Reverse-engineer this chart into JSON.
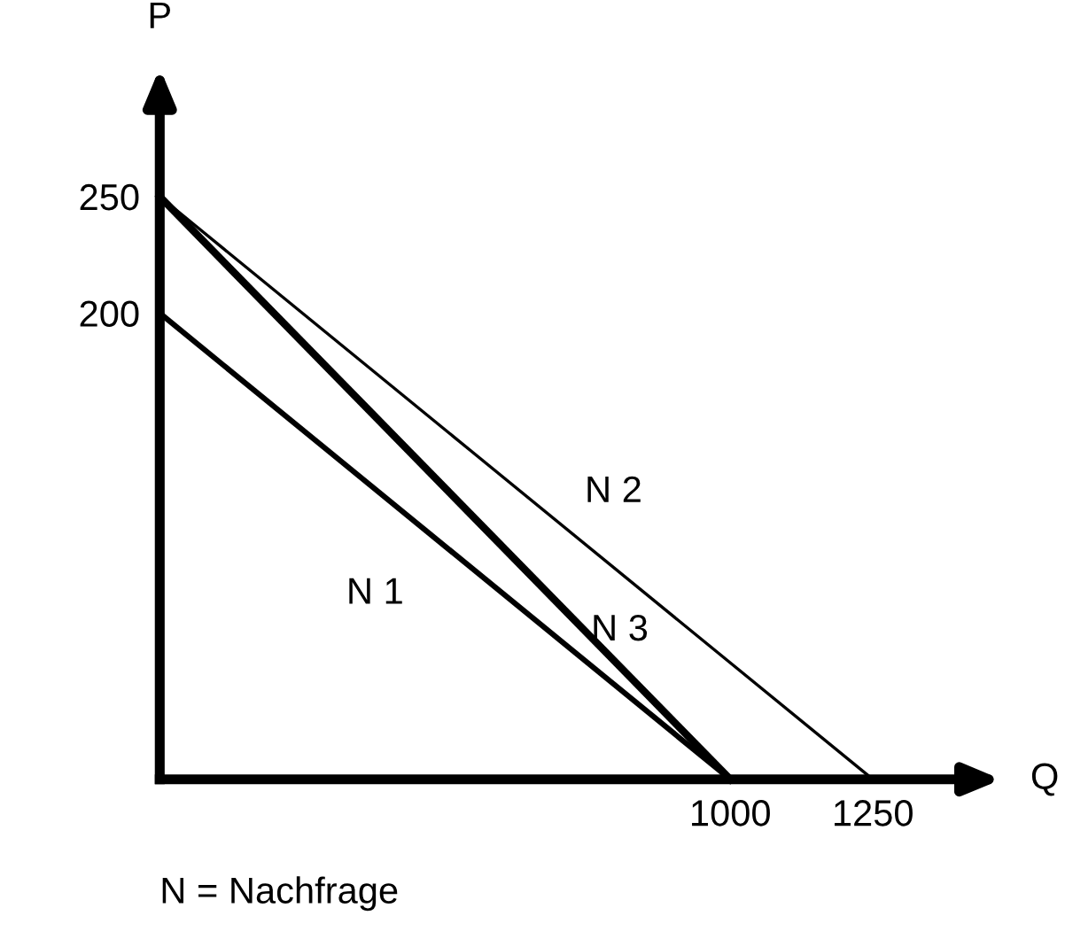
{
  "chart_data": {
    "type": "line",
    "xlabel": "Q",
    "ylabel": "P",
    "series": [
      {
        "name": "N 1",
        "color": "#000000",
        "x": [
          0,
          1000
        ],
        "values": [
          200,
          0
        ]
      },
      {
        "name": "N 2",
        "color": "#000000",
        "x": [
          0,
          1250
        ],
        "values": [
          250,
          0
        ]
      },
      {
        "name": "N 3",
        "color": "#000000",
        "x": [
          0,
          1000
        ],
        "values": [
          250,
          0
        ]
      }
    ],
    "xlim": [
      0,
      1400
    ],
    "ylim": [
      0,
      290
    ],
    "xticks": [
      1000,
      1250
    ],
    "yticks": [
      200,
      250
    ],
    "grid": false,
    "legend": false,
    "marker": "none",
    "line_style": "solid",
    "annotations": [
      "N = Nachfrage"
    ]
  }
}
